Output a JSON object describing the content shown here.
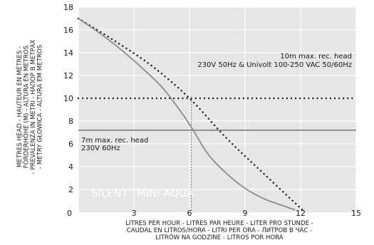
{
  "chart_data": {
    "type": "line",
    "xlim": [
      0,
      15
    ],
    "ylim": [
      0,
      18
    ],
    "x_ticks": [
      0,
      3,
      6,
      9,
      12,
      15
    ],
    "y_ticks": [
      2,
      4,
      6,
      8,
      10,
      12,
      14,
      16,
      18
    ],
    "grid": true,
    "ylabel_lines": [
      "METRES HEAD - HAUTEUR EN MÈTRES -",
      "FÖRDERHÖHE (M) - ALTURA EN METROS",
      "- PREVALENZA IN METRI - НАПОР В МЕТРАХ",
      "- METRY GŁOWICA - ALTURA EM METROS"
    ],
    "xlabel_lines": [
      "LITRES PER HOUR - LITRES PAR HEURE - LITER PRO STUNDE -",
      "CAUDAL EN LITROS/HORA - LITRI PER ORA - ЛИТРОВ В ЧАС -",
      "LITRÓW NA GODZINE - LITROS POR HORA"
    ],
    "product_name": "SILENT",
    "product_sup": "+",
    "product_suffix": " MINI AQUA",
    "series": [
      {
        "name": "230V 50Hz & Univolt 100-250 VAC 50/60Hz",
        "style": "dotted",
        "x": [
          0,
          2,
          4,
          6,
          8,
          10,
          12.1
        ],
        "y": [
          17.0,
          15.0,
          12.8,
          10.0,
          6.5,
          3.4,
          0.2
        ]
      },
      {
        "name": "230V 60Hz",
        "style": "solid",
        "x": [
          0,
          1.5,
          3,
          4.5,
          5.5,
          6.2,
          7,
          8,
          9,
          10,
          11,
          11.7
        ],
        "y": [
          17.0,
          15.3,
          13.3,
          11.0,
          8.9,
          7.2,
          5.1,
          3.4,
          2.1,
          1.2,
          0.6,
          0.2
        ]
      }
    ],
    "reference_lines": [
      {
        "axis": "y",
        "value": 10,
        "style": "dotted",
        "label_lines": [
          "10m max. rec. head",
          "230V 50Hz & Univolt 100-250 VAC 50/60Hz"
        ]
      },
      {
        "axis": "y",
        "value": 7.2,
        "style": "solid",
        "label_lines": [
          "7m max. rec. head",
          "230V 60Hz"
        ]
      },
      {
        "axis": "x",
        "value": 6.1,
        "style": "thin-dotted"
      }
    ]
  },
  "colors": {
    "background": "#ffffff",
    "plot_bg": "#e6e6e7",
    "grid": "#ffffff",
    "curve_solid": "#8a8a8a",
    "curve_dotted": "#1a1a1a",
    "ref_solid": "#8a8a8a",
    "ref_dotted": "#1a1a1a"
  }
}
